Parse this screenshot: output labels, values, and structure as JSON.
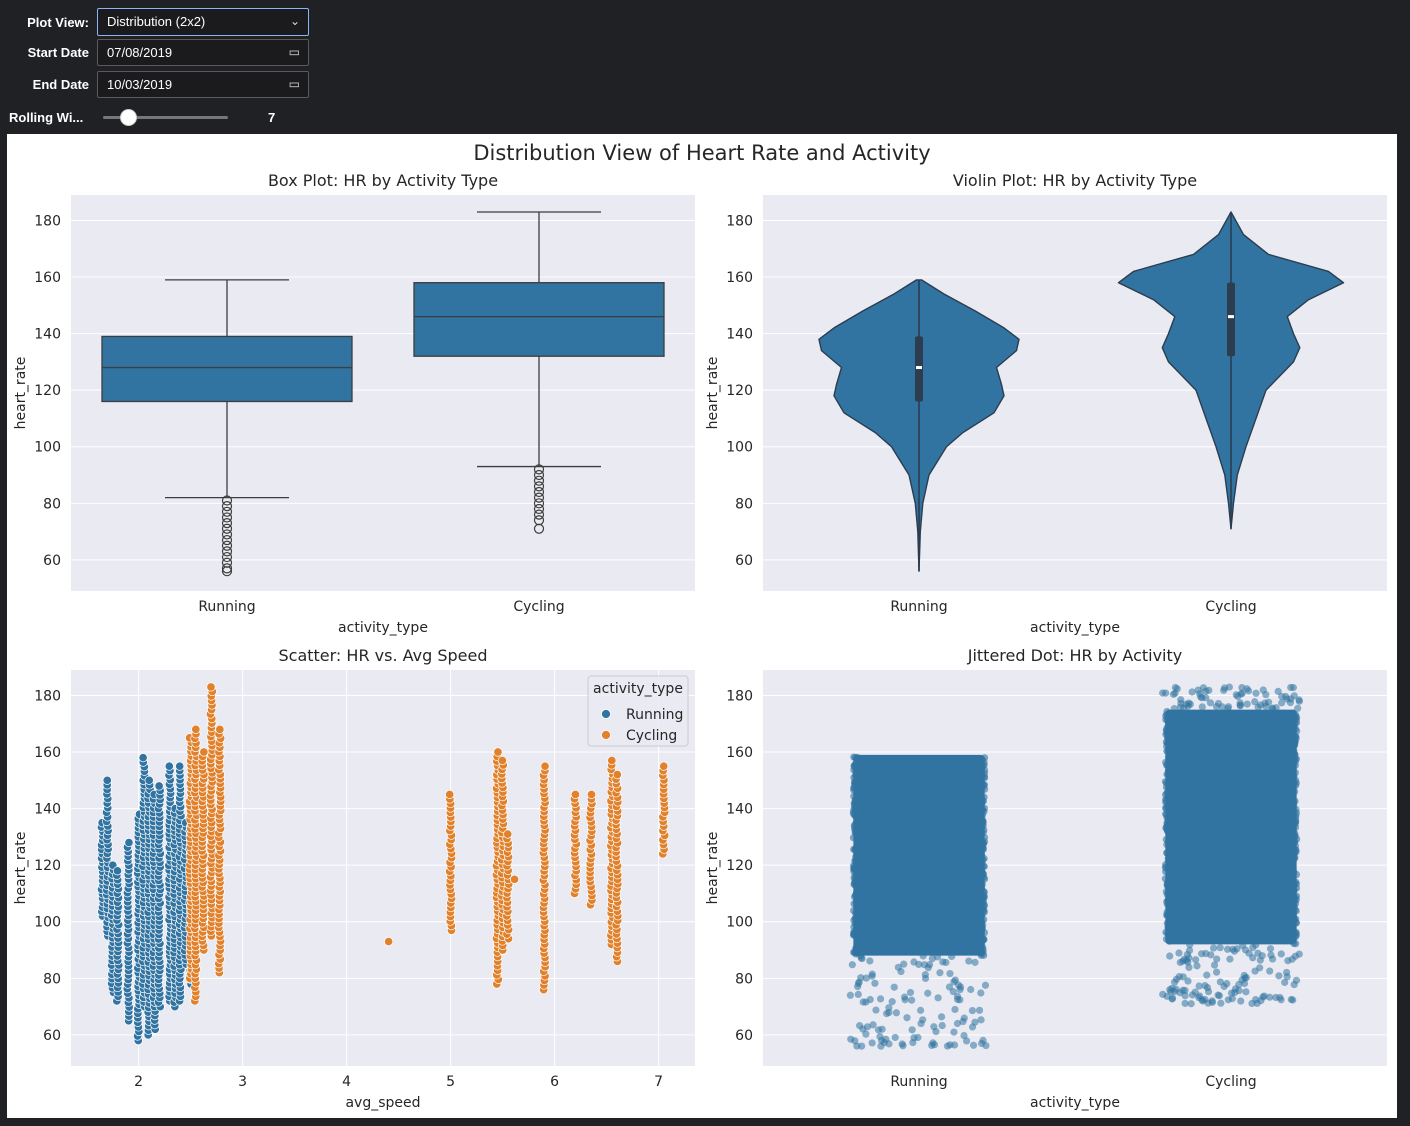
{
  "controls": {
    "plot_view_label": "Plot View:",
    "plot_view_value": "Distribution (2x2)",
    "start_date_label": "Start Date",
    "start_date_value": "07/08/2019",
    "end_date_label": "End Date",
    "end_date_value": "10/03/2019",
    "rolling_label": "Rolling Wi...",
    "rolling_value": "7",
    "rolling_fraction": 0.2
  },
  "figure": {
    "suptitle": "Distribution View of Heart Rate and Activity"
  },
  "colors": {
    "running": "#3274a1",
    "cycling": "#e1812c",
    "panel_bg": "#eaeaf2"
  },
  "chart_data": [
    {
      "type": "box",
      "title": "Box Plot: HR by Activity Type",
      "xlabel": "activity_type",
      "ylabel": "heart_rate",
      "categories": [
        "Running",
        "Cycling"
      ],
      "yticks": [
        60,
        80,
        100,
        120,
        140,
        160,
        180
      ],
      "ylim": [
        49,
        189
      ],
      "boxes": [
        {
          "name": "Running",
          "whisker_low": 82,
          "q1": 116,
          "median": 128,
          "q3": 139,
          "whisker_high": 159,
          "outliers": [
            56,
            57,
            59,
            61,
            63,
            65,
            67,
            69,
            71,
            73,
            75,
            77,
            79,
            81
          ]
        },
        {
          "name": "Cycling",
          "whisker_low": 93,
          "q1": 132,
          "median": 146,
          "q3": 158,
          "whisker_high": 183,
          "outliers": [
            71,
            74,
            76,
            78,
            80,
            82,
            84,
            86,
            88,
            90,
            92
          ]
        }
      ]
    },
    {
      "type": "violin",
      "title": "Violin Plot: HR by Activity Type",
      "xlabel": "activity_type",
      "ylabel": "heart_rate",
      "categories": [
        "Running",
        "Cycling"
      ],
      "yticks": [
        60,
        80,
        100,
        120,
        140,
        160,
        180
      ],
      "ylim": [
        49,
        189
      ],
      "violins": [
        {
          "name": "Running",
          "min": 56,
          "q1": 116,
          "median": 128,
          "q3": 139,
          "max": 159,
          "profile": [
            [
              56,
              0.0
            ],
            [
              70,
              0.01
            ],
            [
              80,
              0.03
            ],
            [
              90,
              0.08
            ],
            [
              100,
              0.22
            ],
            [
              105,
              0.35
            ],
            [
              112,
              0.6
            ],
            [
              118,
              0.68
            ],
            [
              122,
              0.66
            ],
            [
              128,
              0.62
            ],
            [
              134,
              0.78
            ],
            [
              138,
              0.8
            ],
            [
              142,
              0.68
            ],
            [
              148,
              0.45
            ],
            [
              154,
              0.2
            ],
            [
              159,
              0.02
            ]
          ]
        },
        {
          "name": "Cycling",
          "min": 71,
          "q1": 132,
          "median": 146,
          "q3": 158,
          "max": 183,
          "profile": [
            [
              71,
              0.0
            ],
            [
              80,
              0.02
            ],
            [
              90,
              0.05
            ],
            [
              100,
              0.12
            ],
            [
              110,
              0.2
            ],
            [
              120,
              0.28
            ],
            [
              130,
              0.5
            ],
            [
              135,
              0.55
            ],
            [
              140,
              0.5
            ],
            [
              146,
              0.45
            ],
            [
              152,
              0.62
            ],
            [
              158,
              0.9
            ],
            [
              162,
              0.78
            ],
            [
              168,
              0.3
            ],
            [
              175,
              0.1
            ],
            [
              183,
              0.0
            ]
          ]
        }
      ]
    },
    {
      "type": "scatter",
      "title": "Scatter: HR vs. Avg Speed",
      "xlabel": "avg_speed",
      "ylabel": "heart_rate",
      "xticks": [
        2,
        3,
        4,
        5,
        6,
        7
      ],
      "xlim": [
        1.35,
        7.35
      ],
      "yticks": [
        60,
        80,
        100,
        120,
        140,
        160,
        180
      ],
      "ylim": [
        49,
        189
      ],
      "legend": {
        "title": "activity_type",
        "position": "top-right"
      },
      "series": [
        {
          "name": "Running",
          "columns": [
            [
              1.65,
              102,
              135
            ],
            [
              1.7,
              95,
              150
            ],
            [
              1.75,
              75,
              120
            ],
            [
              1.8,
              72,
              118
            ],
            [
              1.9,
              65,
              128
            ],
            [
              2.0,
              58,
              138
            ],
            [
              2.05,
              70,
              158
            ],
            [
              2.1,
              60,
              150
            ],
            [
              2.15,
              62,
              145
            ],
            [
              2.2,
              70,
              148
            ],
            [
              2.3,
              72,
              155
            ],
            [
              2.35,
              70,
              140
            ],
            [
              2.4,
              72,
              155
            ],
            [
              2.45,
              85,
              135
            ],
            [
              2.5,
              78,
              140
            ]
          ]
        },
        {
          "name": "Cycling",
          "columns": [
            [
              2.5,
              80,
              165
            ],
            [
              2.55,
              72,
              168
            ],
            [
              2.62,
              90,
              160
            ],
            [
              2.7,
              95,
              183
            ],
            [
              2.78,
              82,
              168
            ],
            [
              4.4,
              93,
              93
            ],
            [
              5.0,
              97,
              145
            ],
            [
              5.45,
              78,
              160
            ],
            [
              5.5,
              90,
              157
            ],
            [
              5.55,
              94,
              131
            ],
            [
              5.62,
              115,
              115
            ],
            [
              5.9,
              76,
              155
            ],
            [
              6.2,
              110,
              145
            ],
            [
              6.35,
              106,
              145
            ],
            [
              6.55,
              92,
              157
            ],
            [
              6.6,
              86,
              152
            ],
            [
              7.05,
              124,
              155
            ]
          ]
        }
      ]
    },
    {
      "type": "strip",
      "title": "Jittered Dot: HR by Activity",
      "xlabel": "activity_type",
      "ylabel": "heart_rate",
      "categories": [
        "Running",
        "Cycling"
      ],
      "yticks": [
        60,
        80,
        100,
        120,
        140,
        160,
        180
      ],
      "ylim": [
        49,
        189
      ],
      "strips": [
        {
          "name": "Running",
          "dense_low": 88,
          "dense_high": 159,
          "min": 56,
          "max": 159,
          "jitter": 0.22
        },
        {
          "name": "Cycling",
          "dense_low": 92,
          "dense_high": 175,
          "min": 71,
          "max": 183,
          "jitter": 0.22
        }
      ]
    }
  ]
}
